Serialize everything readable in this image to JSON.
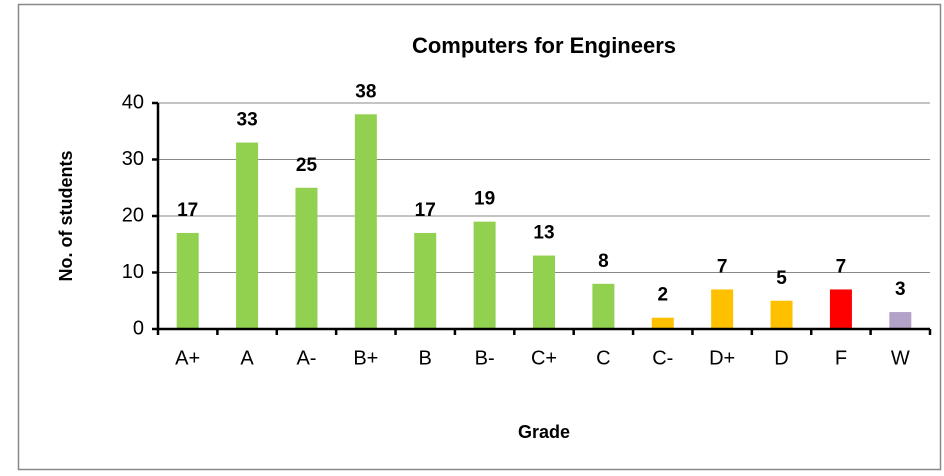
{
  "chart_data": {
    "type": "bar",
    "title": "Computers for Engineers",
    "x_label": "Grade",
    "y_label": "No. of students",
    "categories": [
      "A+",
      "A",
      "A-",
      "B+",
      "B",
      "B-",
      "C+",
      "C",
      "C-",
      "D+",
      "D",
      "F",
      "W"
    ],
    "values": [
      17,
      33,
      25,
      38,
      17,
      19,
      13,
      8,
      2,
      7,
      5,
      7,
      3
    ],
    "colors": [
      "#92d050",
      "#92d050",
      "#92d050",
      "#92d050",
      "#92d050",
      "#92d050",
      "#92d050",
      "#92d050",
      "#ffc000",
      "#ffc000",
      "#ffc000",
      "#ff0000",
      "#b3a2c7"
    ],
    "ylim": [
      0,
      40
    ],
    "yticks": [
      0,
      10,
      20,
      30,
      40
    ],
    "grid": true
  }
}
